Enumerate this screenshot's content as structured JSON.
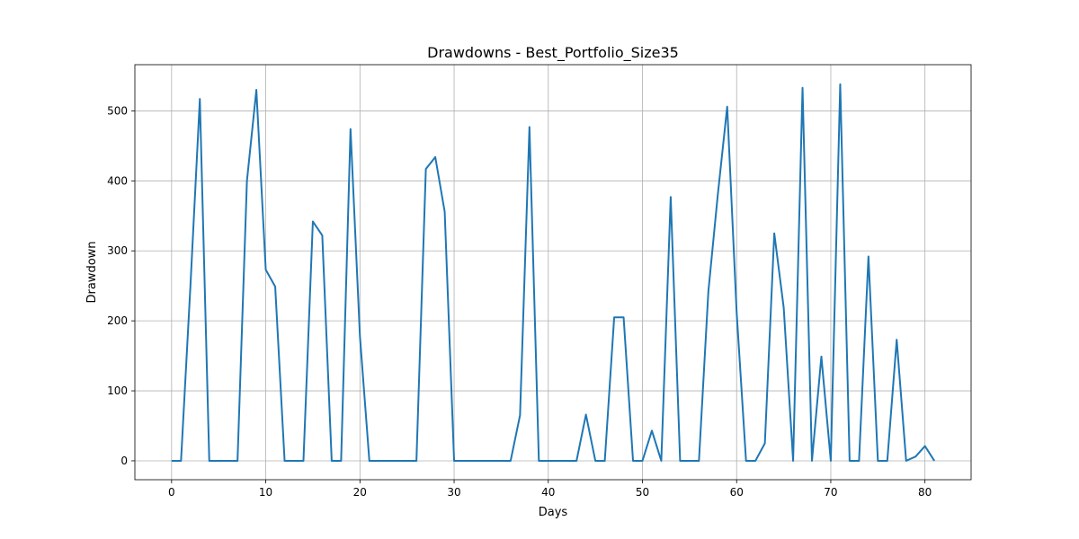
{
  "chart_data": {
    "type": "line",
    "title": "Drawdowns - Best_Portfolio_Size35",
    "xlabel": "Days",
    "ylabel": "Drawdown",
    "xlim": [
      -3.9,
      84.9
    ],
    "ylim": [
      -27,
      566
    ],
    "xticks": [
      0,
      10,
      20,
      30,
      40,
      50,
      60,
      70,
      80
    ],
    "yticks": [
      0,
      100,
      200,
      300,
      400,
      500
    ],
    "grid": true,
    "line_color": "#1f77b4",
    "series": [
      {
        "x": [
          0,
          1,
          2,
          3,
          4,
          5,
          6,
          7,
          8,
          9,
          10,
          11,
          12,
          13,
          14,
          15,
          16,
          17,
          18,
          19,
          20,
          21,
          22,
          23,
          24,
          25,
          26,
          27,
          28,
          29,
          30,
          31,
          32,
          33,
          34,
          35,
          36,
          37,
          38,
          39,
          40,
          41,
          42,
          43,
          44,
          45,
          46,
          47,
          48,
          49,
          50,
          51,
          52,
          53,
          54,
          55,
          56,
          57,
          58,
          59,
          60,
          61,
          62,
          63,
          64,
          65,
          66,
          67,
          68,
          69,
          70,
          71,
          72,
          73,
          74,
          75,
          76,
          77,
          78,
          79,
          80,
          81
        ],
        "values": [
          0,
          0,
          250,
          517,
          0,
          0,
          0,
          0,
          400,
          530,
          273,
          249,
          0,
          0,
          0,
          342,
          322,
          0,
          0,
          474,
          178,
          0,
          0,
          0,
          0,
          0,
          0,
          417,
          434,
          356,
          0,
          0,
          0,
          0,
          0,
          0,
          0,
          65,
          477,
          0,
          0,
          0,
          0,
          0,
          66,
          0,
          0,
          205,
          205,
          0,
          0,
          43,
          0,
          377,
          0,
          0,
          0,
          242,
          380,
          506,
          213,
          0,
          0,
          25,
          325,
          219,
          0,
          533,
          0,
          149,
          0,
          538,
          0,
          0,
          292,
          0,
          0,
          173,
          0,
          6,
          21,
          0
        ]
      }
    ]
  }
}
